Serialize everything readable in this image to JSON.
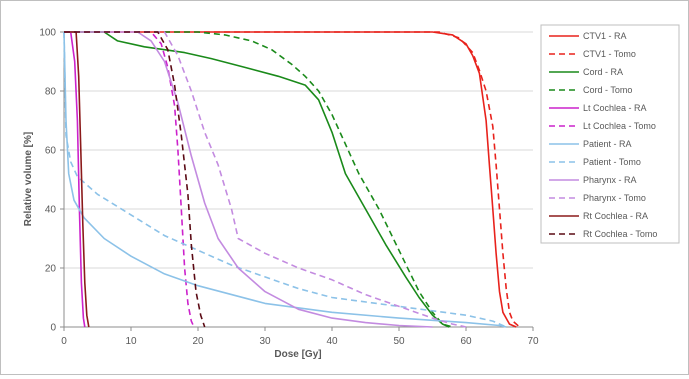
{
  "chart_data": {
    "type": "line",
    "title": "",
    "xlabel": "Dose [Gy]",
    "ylabel": "Relative volume [%]",
    "xlim": [
      0,
      70
    ],
    "ylim": [
      0,
      100
    ],
    "xticks": [
      0,
      10,
      20,
      30,
      40,
      50,
      60,
      70
    ],
    "yticks": [
      0,
      20,
      40,
      60,
      80,
      100
    ],
    "grid": "horizontal",
    "legend_position": "right",
    "series": [
      {
        "name": "CTV1 - RA",
        "color": "#e8221c",
        "dash": "solid",
        "points": [
          [
            0,
            100
          ],
          [
            55,
            100
          ],
          [
            58,
            99
          ],
          [
            60,
            96
          ],
          [
            61,
            92
          ],
          [
            62,
            86
          ],
          [
            63,
            70
          ],
          [
            63.5,
            55
          ],
          [
            64,
            40
          ],
          [
            64.5,
            25
          ],
          [
            65,
            12
          ],
          [
            65.5,
            5
          ],
          [
            66.5,
            1
          ],
          [
            67.5,
            0
          ]
        ]
      },
      {
        "name": "CTV1 - Tomo",
        "color": "#e8221c",
        "dash": "dashed",
        "points": [
          [
            0,
            100
          ],
          [
            56,
            100
          ],
          [
            59,
            98
          ],
          [
            61,
            93
          ],
          [
            62,
            87
          ],
          [
            63,
            80
          ],
          [
            64,
            68
          ],
          [
            64.5,
            55
          ],
          [
            65,
            40
          ],
          [
            65.5,
            25
          ],
          [
            66,
            13
          ],
          [
            66.5,
            5
          ],
          [
            67,
            2
          ],
          [
            68,
            0
          ]
        ]
      },
      {
        "name": "Cord - RA",
        "color": "#1a8a1a",
        "dash": "solid",
        "points": [
          [
            0,
            100
          ],
          [
            6,
            100
          ],
          [
            8,
            97
          ],
          [
            12,
            95
          ],
          [
            15,
            94
          ],
          [
            18,
            93
          ],
          [
            22,
            91
          ],
          [
            27,
            88
          ],
          [
            32,
            85
          ],
          [
            36,
            82
          ],
          [
            38,
            77
          ],
          [
            40,
            66
          ],
          [
            42,
            52
          ],
          [
            45,
            40
          ],
          [
            48,
            28
          ],
          [
            51,
            17
          ],
          [
            53,
            10
          ],
          [
            55,
            4
          ],
          [
            56.5,
            1
          ],
          [
            57.5,
            0
          ]
        ]
      },
      {
        "name": "Cord - Tomo",
        "color": "#1a8a1a",
        "dash": "dashed",
        "points": [
          [
            0,
            100
          ],
          [
            20,
            100
          ],
          [
            24,
            99
          ],
          [
            28,
            97
          ],
          [
            31,
            94
          ],
          [
            34,
            89
          ],
          [
            36,
            85
          ],
          [
            38,
            80
          ],
          [
            40,
            72
          ],
          [
            42,
            62
          ],
          [
            44,
            52
          ],
          [
            47,
            40
          ],
          [
            50,
            26
          ],
          [
            53,
            12
          ],
          [
            55,
            5
          ],
          [
            56.5,
            1
          ],
          [
            58,
            0
          ]
        ]
      },
      {
        "name": "Lt Cochlea - RA",
        "color": "#cc22cc",
        "dash": "solid",
        "points": [
          [
            0,
            100
          ],
          [
            1,
            100
          ],
          [
            1.6,
            90
          ],
          [
            2,
            70
          ],
          [
            2.3,
            40
          ],
          [
            2.6,
            15
          ],
          [
            2.9,
            3
          ],
          [
            3.1,
            0
          ]
        ]
      },
      {
        "name": "Lt Cochlea - Tomo",
        "color": "#cc22cc",
        "dash": "dashed",
        "points": [
          [
            0,
            100
          ],
          [
            13,
            100
          ],
          [
            14.5,
            96
          ],
          [
            15.5,
            88
          ],
          [
            16.5,
            75
          ],
          [
            17,
            60
          ],
          [
            17.5,
            40
          ],
          [
            18,
            20
          ],
          [
            18.5,
            8
          ],
          [
            19,
            2
          ],
          [
            19.4,
            0
          ]
        ]
      },
      {
        "name": "Patient - RA",
        "color": "#8cc2e8",
        "dash": "solid",
        "points": [
          [
            0,
            100
          ],
          [
            0.3,
            70
          ],
          [
            0.7,
            52
          ],
          [
            1.5,
            43
          ],
          [
            3,
            37
          ],
          [
            6,
            30
          ],
          [
            10,
            24
          ],
          [
            15,
            18
          ],
          [
            20,
            14
          ],
          [
            30,
            8
          ],
          [
            40,
            5
          ],
          [
            50,
            3
          ],
          [
            60,
            1.5
          ],
          [
            65,
            0.5
          ],
          [
            66,
            0
          ]
        ]
      },
      {
        "name": "Patient - Tomo",
        "color": "#8cc2e8",
        "dash": "dashed",
        "points": [
          [
            0,
            100
          ],
          [
            0.3,
            65
          ],
          [
            1,
            56
          ],
          [
            2,
            51
          ],
          [
            5,
            45
          ],
          [
            10,
            38
          ],
          [
            15,
            31
          ],
          [
            20,
            26
          ],
          [
            25,
            21
          ],
          [
            30,
            17
          ],
          [
            35,
            13
          ],
          [
            40,
            10
          ],
          [
            50,
            7
          ],
          [
            60,
            4
          ],
          [
            64,
            2
          ],
          [
            66,
            0
          ]
        ]
      },
      {
        "name": "Pharynx - RA",
        "color": "#c38be0",
        "dash": "solid",
        "points": [
          [
            0,
            100
          ],
          [
            11,
            100
          ],
          [
            13,
            97
          ],
          [
            15,
            90
          ],
          [
            17,
            76
          ],
          [
            19,
            58
          ],
          [
            21,
            42
          ],
          [
            23,
            30
          ],
          [
            26,
            20
          ],
          [
            30,
            12
          ],
          [
            35,
            6
          ],
          [
            40,
            3
          ],
          [
            45,
            1.5
          ],
          [
            50,
            0.5
          ],
          [
            55,
            0
          ]
        ]
      },
      {
        "name": "Pharynx - Tomo",
        "color": "#c38be0",
        "dash": "dashed",
        "points": [
          [
            0,
            100
          ],
          [
            15,
            100
          ],
          [
            17,
            92
          ],
          [
            19,
            80
          ],
          [
            21,
            66
          ],
          [
            23,
            55
          ],
          [
            25,
            40
          ],
          [
            26,
            30
          ],
          [
            30,
            25
          ],
          [
            35,
            20
          ],
          [
            40,
            16
          ],
          [
            45,
            11
          ],
          [
            50,
            7
          ],
          [
            55,
            3
          ],
          [
            58,
            1
          ],
          [
            60,
            0
          ]
        ]
      },
      {
        "name": "Rt Cochlea - RA",
        "color": "#8b1a1a",
        "dash": "solid",
        "points": [
          [
            0,
            100
          ],
          [
            1.8,
            100
          ],
          [
            2.2,
            85
          ],
          [
            2.5,
            60
          ],
          [
            2.8,
            35
          ],
          [
            3.1,
            15
          ],
          [
            3.4,
            4
          ],
          [
            3.7,
            0
          ]
        ]
      },
      {
        "name": "Rt Cochlea - Tomo",
        "color": "#5a0a14",
        "dash": "dashed",
        "points": [
          [
            0,
            100
          ],
          [
            14,
            100
          ],
          [
            15.5,
            94
          ],
          [
            16.5,
            82
          ],
          [
            17.5,
            65
          ],
          [
            18.5,
            45
          ],
          [
            19,
            28
          ],
          [
            19.7,
            12
          ],
          [
            20.4,
            4
          ],
          [
            21,
            0
          ]
        ]
      }
    ]
  }
}
